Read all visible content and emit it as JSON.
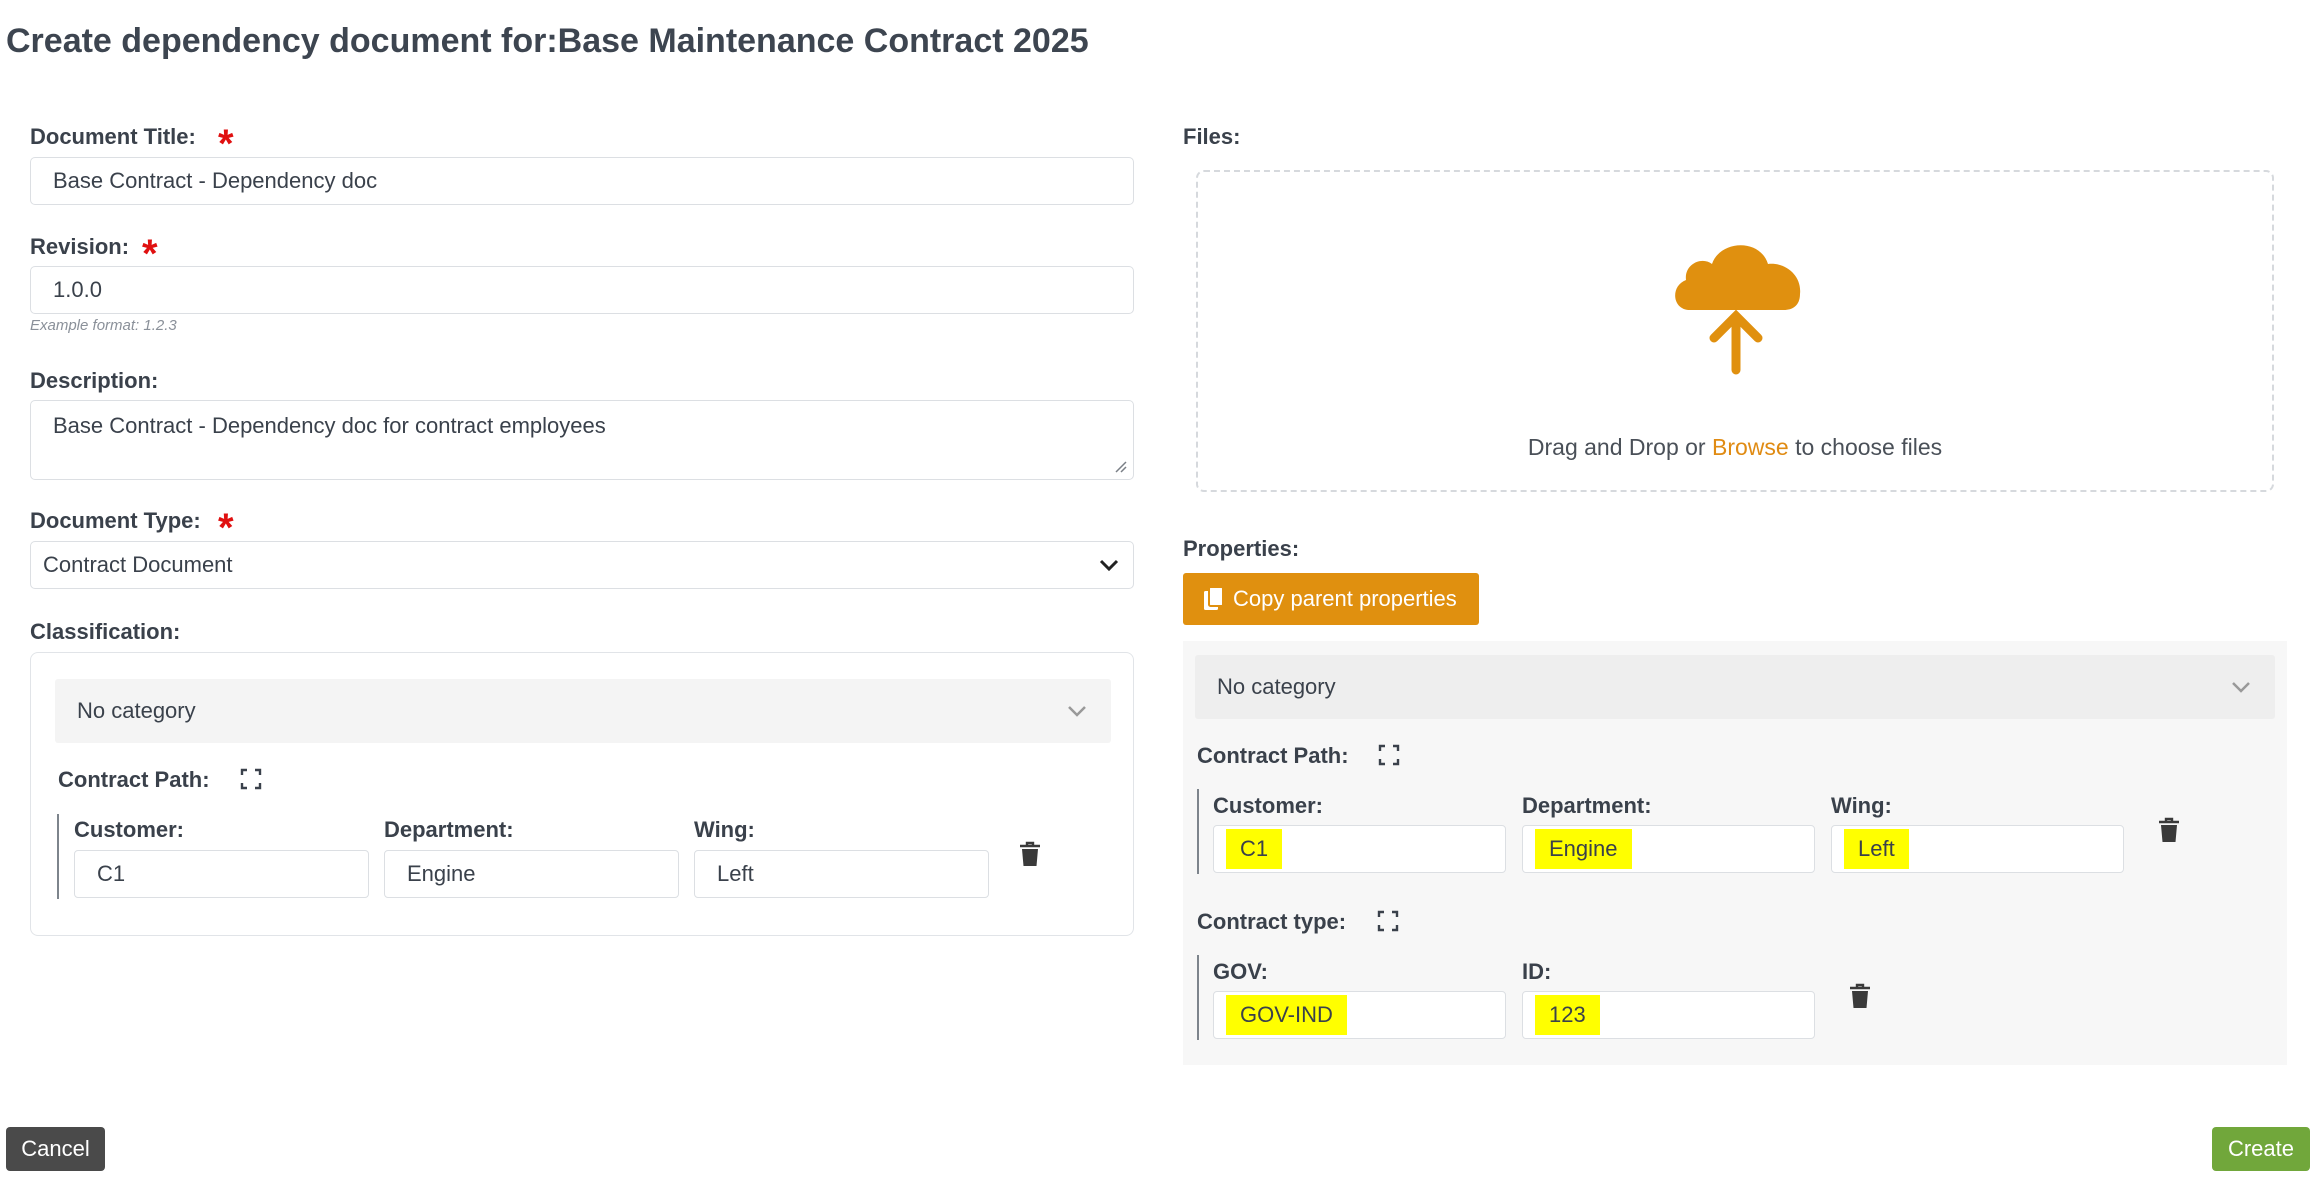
{
  "page": {
    "title": "Create dependency document for:Base Maintenance Contract 2025"
  },
  "form": {
    "title_label": "Document Title:",
    "title_value": "Base Contract - Dependency doc",
    "revision_label": "Revision:",
    "revision_value": "1.0.0",
    "revision_hint": "Example format: 1.2.3",
    "description_label": "Description:",
    "description_value": "Base Contract - Dependency doc for contract employees",
    "type_label": "Document Type:",
    "type_value": "Contract Document",
    "classification_label": "Classification:",
    "required_mark": "*"
  },
  "classification": {
    "category": "No category",
    "group_label": "Contract Path:",
    "fields": [
      {
        "label": "Customer:",
        "value": "C1"
      },
      {
        "label": "Department:",
        "value": "Engine"
      },
      {
        "label": "Wing:",
        "value": "Left"
      }
    ]
  },
  "files": {
    "label": "Files:",
    "drop_text_before": "Drag and Drop or ",
    "browse_link": "Browse",
    "drop_text_after": " to choose files"
  },
  "properties": {
    "label": "Properties:",
    "copy_button": "Copy parent properties",
    "category": "No category",
    "groups": [
      {
        "label": "Contract Path:",
        "fields": [
          {
            "label": "Customer:",
            "value": "C1"
          },
          {
            "label": "Department:",
            "value": "Engine"
          },
          {
            "label": "Wing:",
            "value": "Left"
          }
        ]
      },
      {
        "label": "Contract type:",
        "fields": [
          {
            "label": "GOV:",
            "value": "GOV-IND"
          },
          {
            "label": "ID:",
            "value": "123"
          }
        ]
      }
    ]
  },
  "actions": {
    "cancel": "Cancel",
    "create": "Create"
  },
  "colors": {
    "accent": "#e0900f",
    "create": "#71a73b",
    "cancel": "#4a4a4a",
    "required": "#e01010",
    "highlight": "#ffff00"
  }
}
